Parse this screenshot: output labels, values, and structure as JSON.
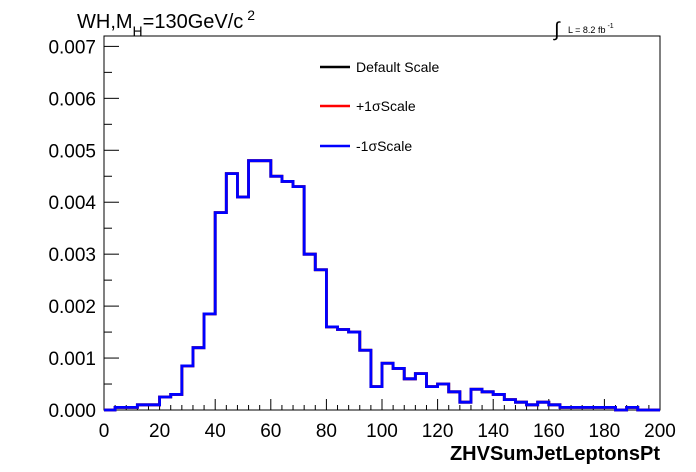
{
  "chart_data": {
    "type": "line",
    "title": {
      "main": "WH,M",
      "sub": "H",
      "rest": "=130GeV/c",
      "sup": "2"
    },
    "lumi": {
      "integral": "∫",
      "text": "L = 8.2 fb",
      "sup": "-1"
    },
    "xlabel": "ZHVSumJetLeptonsPt",
    "ylabel": "",
    "xlim": [
      0,
      200
    ],
    "ylim": [
      0,
      0.0072
    ],
    "x_ticks": [
      "0",
      "20",
      "40",
      "60",
      "80",
      "100",
      "120",
      "140",
      "160",
      "180",
      "200"
    ],
    "y_ticks": [
      "0.000",
      "0.001",
      "0.002",
      "0.003",
      "0.004",
      "0.005",
      "0.006",
      "0.007"
    ],
    "grid": false,
    "legend_position": "top-center",
    "bin_width": 4,
    "bin_edges_start": 0,
    "series": [
      {
        "name": "Default Scale",
        "color": "#000000",
        "values": [
          0.0,
          5e-05,
          5e-05,
          0.0001,
          0.0001,
          0.00025,
          0.0003,
          0.00085,
          0.0012,
          0.00185,
          0.0038,
          0.00455,
          0.0041,
          0.0048,
          0.0048,
          0.0045,
          0.0044,
          0.0043,
          0.003,
          0.0027,
          0.0016,
          0.00155,
          0.0015,
          0.00115,
          0.00045,
          0.0009,
          0.0008,
          0.0006,
          0.0007,
          0.00045,
          0.0005,
          0.00035,
          0.00015,
          0.0004,
          0.00035,
          0.0003,
          0.0002,
          0.00015,
          0.0001,
          0.00015,
          0.0001,
          5e-05,
          5e-05,
          5e-05,
          5e-05,
          5e-05,
          0.0,
          5e-05,
          0.0,
          0.0
        ]
      },
      {
        "name": "+1σScale",
        "color": "#ff0000",
        "values": [
          0.0,
          5e-05,
          5e-05,
          0.0001,
          0.0001,
          0.00025,
          0.0003,
          0.00085,
          0.0012,
          0.00185,
          0.0038,
          0.00455,
          0.0041,
          0.0048,
          0.0048,
          0.0045,
          0.0044,
          0.0043,
          0.003,
          0.0027,
          0.0016,
          0.00155,
          0.0015,
          0.00115,
          0.00045,
          0.0009,
          0.0008,
          0.0006,
          0.0007,
          0.00045,
          0.0005,
          0.00035,
          0.00015,
          0.0004,
          0.00035,
          0.0003,
          0.0002,
          0.00015,
          0.0001,
          0.00015,
          0.0001,
          5e-05,
          5e-05,
          5e-05,
          5e-05,
          5e-05,
          0.0,
          5e-05,
          0.0,
          0.0
        ]
      },
      {
        "name": "-1σScale",
        "color": "#0000ff",
        "values": [
          0.0,
          5e-05,
          5e-05,
          0.0001,
          0.0001,
          0.00025,
          0.0003,
          0.00085,
          0.0012,
          0.00185,
          0.0038,
          0.00455,
          0.0041,
          0.0048,
          0.0048,
          0.0045,
          0.0044,
          0.0043,
          0.003,
          0.0027,
          0.0016,
          0.00155,
          0.0015,
          0.00115,
          0.00045,
          0.0009,
          0.0008,
          0.0006,
          0.0007,
          0.00045,
          0.0005,
          0.00035,
          0.00015,
          0.0004,
          0.00035,
          0.0003,
          0.0002,
          0.00015,
          0.0001,
          0.00015,
          0.0001,
          5e-05,
          5e-05,
          5e-05,
          5e-05,
          5e-05,
          0.0,
          5e-05,
          0.0,
          0.0
        ]
      }
    ]
  }
}
